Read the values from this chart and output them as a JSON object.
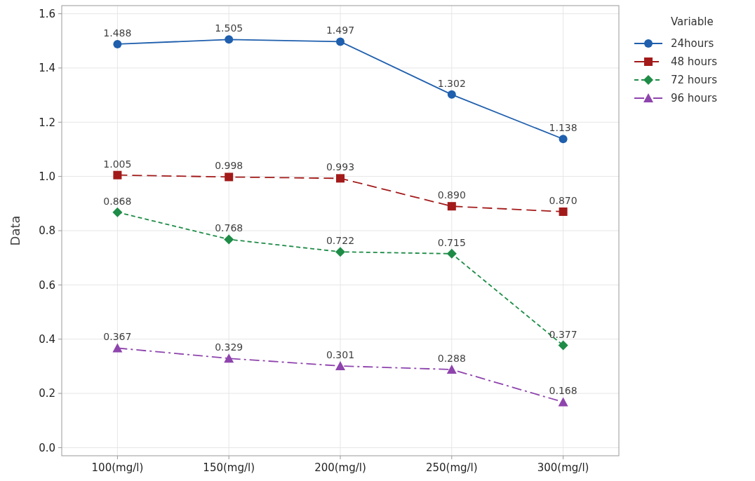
{
  "chart_data": {
    "type": "line",
    "ylabel": "Data",
    "legend_title": "Variable",
    "legend": "right",
    "grid": true,
    "categories": [
      "100(mg/l)",
      "150(mg/l)",
      "200(mg/l)",
      "250(mg/l)",
      "300(mg/l)"
    ],
    "ylim": [
      -0.03,
      1.63
    ],
    "yticks": [
      {
        "value": 0,
        "label": "0.0"
      },
      {
        "value": 0.2,
        "label": "0.2"
      },
      {
        "value": 0.4,
        "label": "0.4"
      },
      {
        "value": 0.6,
        "label": "0.6"
      },
      {
        "value": 0.8,
        "label": "0.8"
      },
      {
        "value": 1,
        "label": "1.0"
      },
      {
        "value": 1.2,
        "label": "1.2"
      },
      {
        "value": 1.4,
        "label": "1.4"
      },
      {
        "value": 1.6,
        "label": "1.6"
      }
    ],
    "series": [
      {
        "name": "24hours",
        "color": "#1f5fad",
        "marker": "circle",
        "line_style": "solid",
        "values": [
          1.488,
          1.505,
          1.497,
          1.302,
          1.138
        ],
        "value_labels": [
          "1.488",
          "1.505",
          "1.497",
          "1.302",
          "1.138"
        ]
      },
      {
        "name": "48 hours",
        "color": "#a31a1a",
        "marker": "square",
        "line_style": "dashed",
        "values": [
          1.005,
          0.998,
          0.993,
          0.89,
          0.87
        ],
        "value_labels": [
          "1.005",
          "0.998",
          "0.993",
          "0.890",
          "0.870"
        ]
      },
      {
        "name": "72 hours",
        "color": "#1e8c47",
        "marker": "diamond",
        "line_style": "dotted",
        "values": [
          0.868,
          0.768,
          0.722,
          0.715,
          0.377
        ],
        "value_labels": [
          "0.868",
          "0.768",
          "0.722",
          "0.715",
          "0.377"
        ]
      },
      {
        "name": "96 hours",
        "color": "#8e44ad",
        "marker": "triangle",
        "line_style": "dashdot",
        "values": [
          0.367,
          0.329,
          0.301,
          0.288,
          0.168
        ],
        "value_labels": [
          "0.367",
          "0.329",
          "0.301",
          "0.288",
          "0.168"
        ]
      }
    ]
  }
}
